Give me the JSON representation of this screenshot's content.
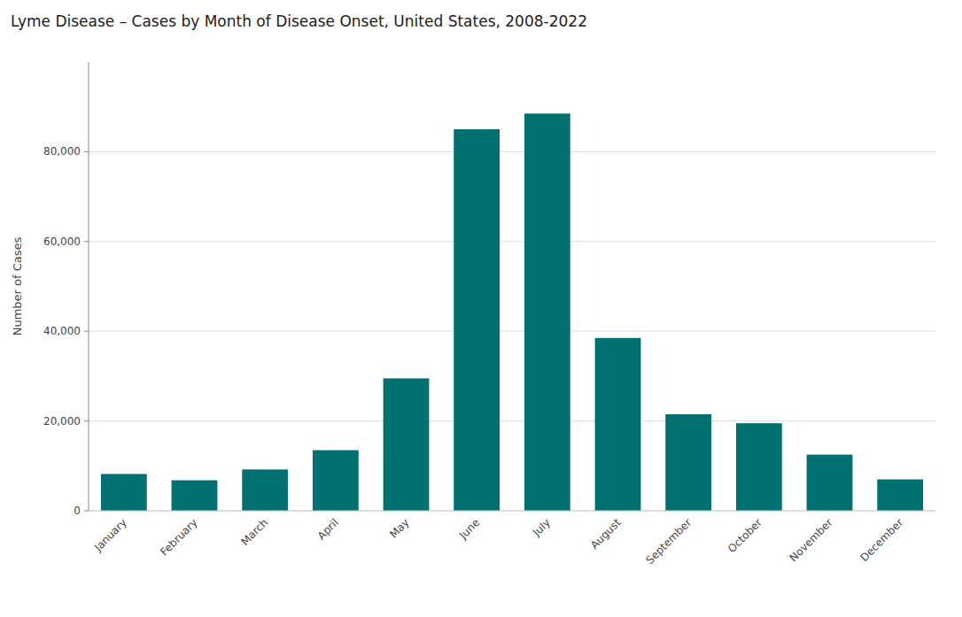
{
  "chart_data": {
    "type": "bar",
    "title": "Lyme Disease – Cases by Month of Disease Onset, United States, 2008-2022",
    "categories": [
      "January",
      "February",
      "March",
      "April",
      "May",
      "June",
      "July",
      "August",
      "September",
      "October",
      "November",
      "December"
    ],
    "values": [
      8200,
      6800,
      9200,
      13500,
      29500,
      85000,
      88500,
      38500,
      21500,
      19500,
      12500,
      7000
    ],
    "color": "#007070",
    "ylabel": "Number of Cases",
    "ylim": [
      0,
      100000
    ],
    "yticks": [
      0,
      {
        "value": 20000,
        "label": "20,000"
      },
      {
        "value": 40000,
        "label": "40,000"
      },
      {
        "value": 60000,
        "label": "60,000"
      },
      {
        "value": 80000,
        "label": "80,000"
      }
    ],
    "grid": true
  }
}
